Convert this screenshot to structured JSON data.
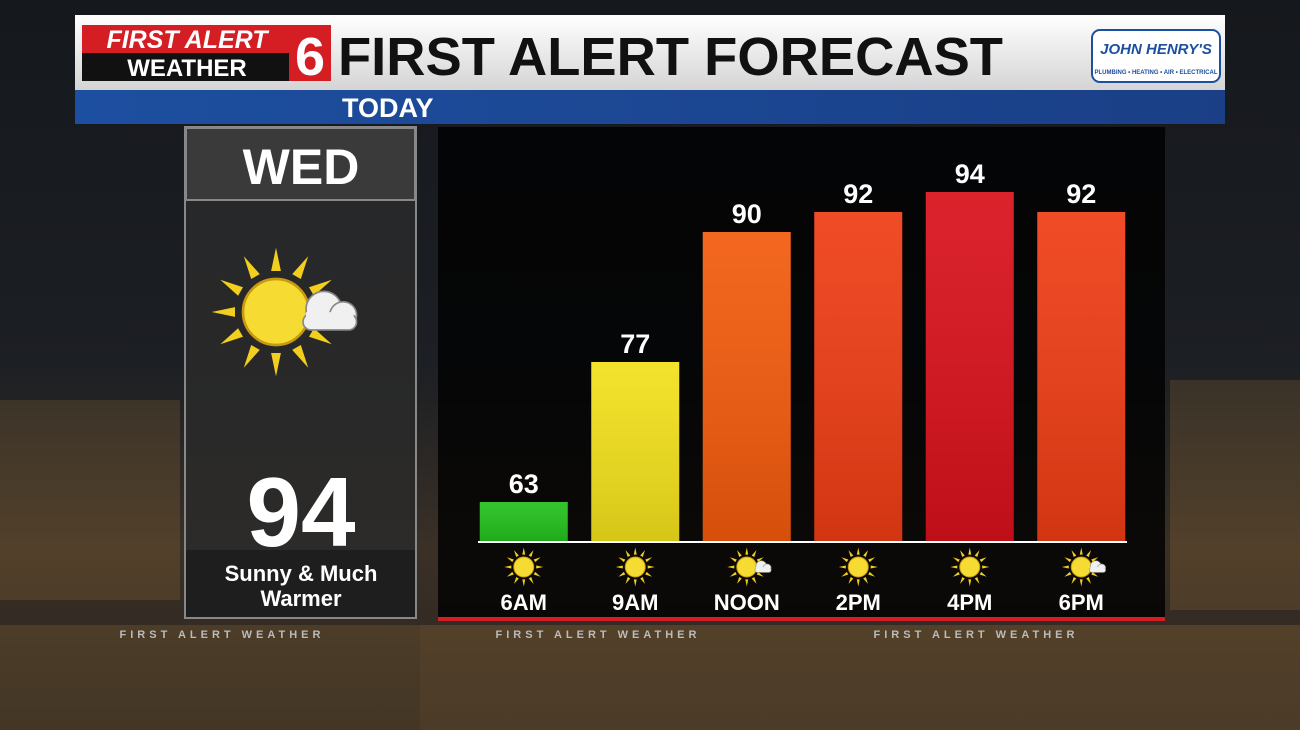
{
  "header": {
    "logo_line1": "FIRST ALERT",
    "logo_line2": "WEATHER",
    "logo_number": "6",
    "title": "FIRST ALERT FORECAST",
    "subtitle": "TODAY",
    "sponsor": "JOHN HENRY'S",
    "sponsor_tagline": "PLUMBING • HEATING • AIR • ELECTRICAL"
  },
  "day": {
    "name": "WED",
    "icon": "partly-sunny",
    "high": 94,
    "condition_lines": [
      "Sunny & Much",
      "Warmer"
    ]
  },
  "watermark": "FIRST ALERT WEATHER",
  "chart_data": {
    "type": "bar",
    "categories": [
      "6AM",
      "9AM",
      "NOON",
      "2PM",
      "4PM",
      "6PM"
    ],
    "values": [
      63,
      77,
      90,
      92,
      94,
      92
    ],
    "colors": [
      "#22c01c",
      "#f2e01a",
      "#f25a0c",
      "#ee3c14",
      "#d8101a",
      "#ee3c14"
    ],
    "icons": [
      "sunny",
      "sunny",
      "partly-sunny",
      "sunny",
      "sunny",
      "partly-sunny"
    ],
    "ylim": [
      59,
      100
    ]
  }
}
